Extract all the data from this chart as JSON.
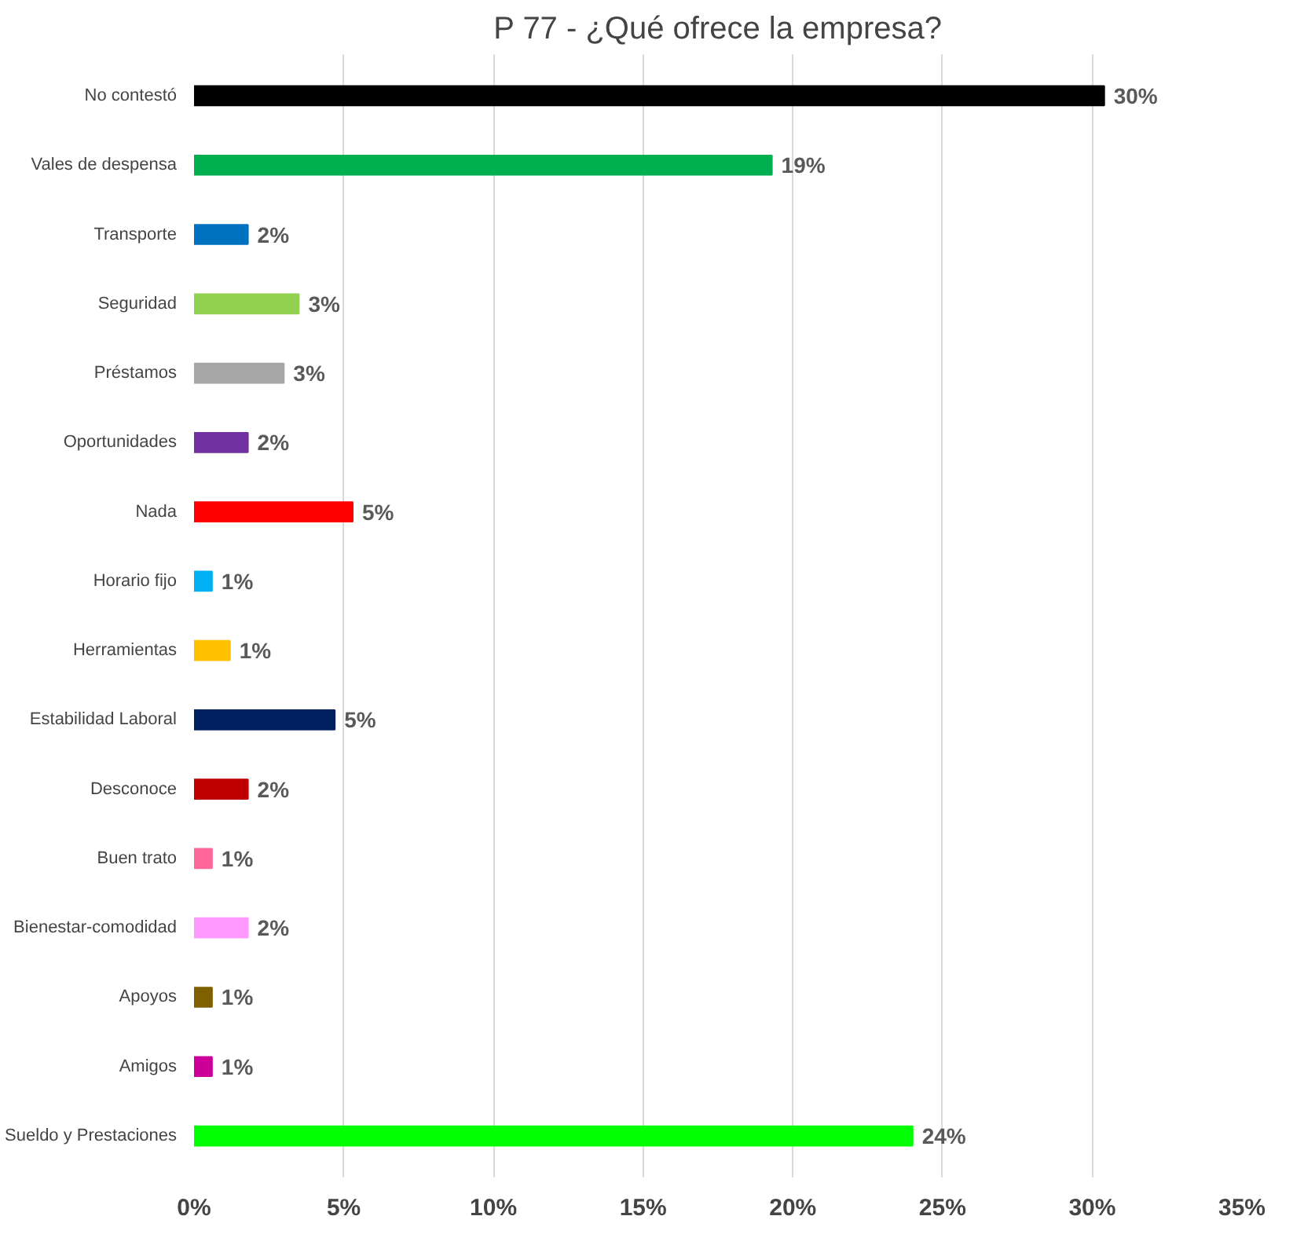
{
  "chart_data": {
    "type": "bar",
    "orientation": "horizontal",
    "title": "P 77 - ¿Qué ofrece la empresa?",
    "categories": [
      "No contestó",
      "Vales de despensa",
      "Transporte",
      "Seguridad",
      "Préstamos",
      "Oportunidades",
      "Nada",
      "Horario fijo",
      "Herramientas",
      "Estabilidad Laboral",
      "Desconoce",
      "Buen trato",
      "Bienestar-comodidad",
      "Apoyos",
      "Amigos",
      "Sueldo y Prestaciones"
    ],
    "values": [
      30.4,
      19.3,
      1.8,
      3.5,
      3.0,
      1.8,
      5.3,
      0.6,
      1.2,
      4.7,
      1.8,
      0.6,
      1.8,
      0.6,
      0.6,
      24.0
    ],
    "value_labels": [
      "30%",
      "19%",
      "2%",
      "3%",
      "3%",
      "2%",
      "5%",
      "1%",
      "1%",
      "5%",
      "2%",
      "1%",
      "2%",
      "1%",
      "1%",
      "24%"
    ],
    "colors": [
      "#000000",
      "#00b050",
      "#0070c0",
      "#92d050",
      "#a6a6a6",
      "#7030a0",
      "#ff0000",
      "#00b0f0",
      "#ffc000",
      "#002060",
      "#c00000",
      "#ff6699",
      "#ff99ff",
      "#7f6000",
      "#cc0099",
      "#00ff00"
    ],
    "xlim": [
      0,
      35
    ],
    "xticks": [
      {
        "value": 0,
        "label": "0%"
      },
      {
        "value": 5,
        "label": "5%"
      },
      {
        "value": 10,
        "label": "10%"
      },
      {
        "value": 15,
        "label": "15%"
      },
      {
        "value": 20,
        "label": "20%"
      },
      {
        "value": 25,
        "label": "25%"
      },
      {
        "value": 30,
        "label": "30%"
      },
      {
        "value": 35,
        "label": "35%"
      }
    ],
    "grid": "x"
  }
}
